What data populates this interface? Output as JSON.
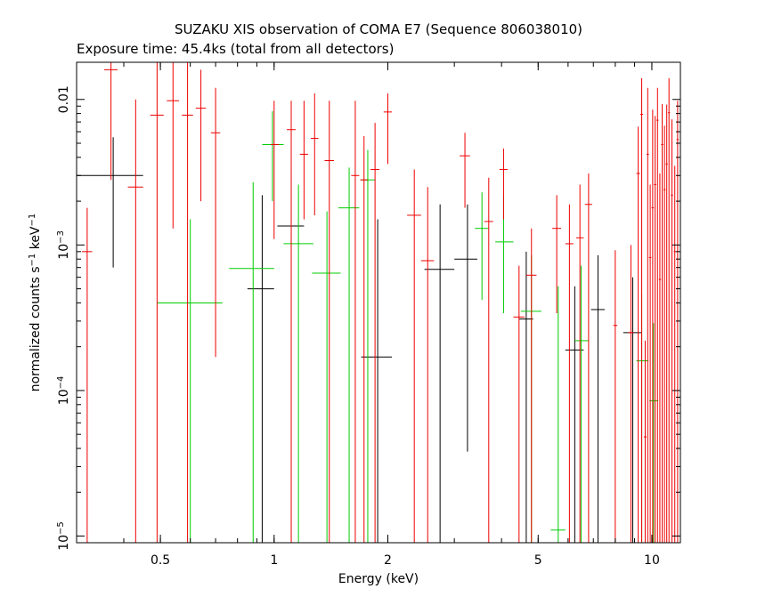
{
  "chart_data": {
    "type": "scatter",
    "title": "SUZAKU XIS observation of COMA E7 (Sequence 806038010)",
    "subtitle": "Exposure time: 45.4ks (total from all detectors)",
    "xlabel": "Energy (keV)",
    "ylabel_main": "normalized counts s",
    "ylabel_exp1": "−1",
    "ylabel_mid": " keV",
    "ylabel_exp2": "−1",
    "xscale": "log",
    "yscale": "log",
    "xlim": [
      0.3,
      11.9
    ],
    "ylim": [
      9e-06,
      0.018
    ],
    "x_ticks": [
      {
        "value": 0.5,
        "label": "0.5"
      },
      {
        "value": 1,
        "label": "1"
      },
      {
        "value": 2,
        "label": "2"
      },
      {
        "value": 5,
        "label": "5"
      },
      {
        "value": 10,
        "label": "10"
      }
    ],
    "y_ticks": [
      {
        "value": 1e-05,
        "base": "10",
        "exp": "−5"
      },
      {
        "value": 0.0001,
        "base": "10",
        "exp": "−4"
      },
      {
        "value": 0.001,
        "base": "10",
        "exp": "−3"
      },
      {
        "value": 0.01,
        "base": "0.01",
        "exp": ""
      }
    ],
    "series": [
      {
        "color": "#000000",
        "points": [
          {
            "x": 0.375,
            "xlo": 0.3,
            "xhi": 0.45,
            "y": 0.003,
            "ylo": 0.0007,
            "yhi": 0.0055
          },
          {
            "x": 0.93,
            "xlo": 0.85,
            "xhi": 1.0,
            "y": 0.0005,
            "ylo": 9e-06,
            "yhi": 0.0022
          },
          {
            "x": 1.11,
            "xlo": 1.02,
            "xhi": 1.2,
            "y": 0.00135,
            "ylo": 9e-06,
            "yhi": 0.0033
          },
          {
            "x": 1.88,
            "xlo": 1.7,
            "xhi": 2.05,
            "y": 0.00017,
            "ylo": 9e-06,
            "yhi": 0.0015
          },
          {
            "x": 2.75,
            "xlo": 2.5,
            "xhi": 3.0,
            "y": 0.00068,
            "ylo": 9e-06,
            "yhi": 0.0019
          },
          {
            "x": 3.25,
            "xlo": 3.0,
            "xhi": 3.45,
            "y": 0.0008,
            "ylo": 3.8e-05,
            "yhi": 0.0019
          },
          {
            "x": 4.65,
            "xlo": 4.45,
            "xhi": 4.85,
            "y": 0.00031,
            "ylo": 9e-06,
            "yhi": 0.0009
          },
          {
            "x": 6.25,
            "xlo": 5.9,
            "xhi": 6.6,
            "y": 0.00019,
            "ylo": 9e-06,
            "yhi": 0.00052
          },
          {
            "x": 7.2,
            "xlo": 6.9,
            "xhi": 7.5,
            "y": 0.00036,
            "ylo": 9e-06,
            "yhi": 0.00085
          },
          {
            "x": 8.9,
            "xlo": 8.4,
            "xhi": 9.4,
            "y": 0.00025,
            "ylo": 9e-06,
            "yhi": 0.0006
          }
        ]
      },
      {
        "color": "#00cc00",
        "points": [
          {
            "x": 0.6,
            "xlo": 0.49,
            "xhi": 0.73,
            "y": 0.0004,
            "ylo": 9e-06,
            "yhi": 0.0015
          },
          {
            "x": 0.88,
            "xlo": 0.76,
            "xhi": 1.0,
            "y": 0.00069,
            "ylo": 9e-06,
            "yhi": 0.0027
          },
          {
            "x": 0.99,
            "xlo": 0.93,
            "xhi": 1.06,
            "y": 0.0049,
            "ylo": 0.002,
            "yhi": 0.0083
          },
          {
            "x": 1.16,
            "xlo": 1.06,
            "xhi": 1.27,
            "y": 0.00102,
            "ylo": 9e-06,
            "yhi": 0.0026
          },
          {
            "x": 1.38,
            "xlo": 1.26,
            "xhi": 1.5,
            "y": 0.00064,
            "ylo": 9e-06,
            "yhi": 0.0017
          },
          {
            "x": 1.58,
            "xlo": 1.48,
            "xhi": 1.68,
            "y": 0.0018,
            "ylo": 9e-06,
            "yhi": 0.0034
          },
          {
            "x": 1.77,
            "xlo": 1.7,
            "xhi": 1.85,
            "y": 0.0028,
            "ylo": 9e-06,
            "yhi": 0.0045
          },
          {
            "x": 3.55,
            "xlo": 3.4,
            "xhi": 3.7,
            "y": 0.0013,
            "ylo": 0.00042,
            "yhi": 0.0023
          },
          {
            "x": 4.05,
            "xlo": 3.85,
            "xhi": 4.3,
            "y": 0.00105,
            "ylo": 0.00034,
            "yhi": 0.0022
          },
          {
            "x": 4.8,
            "xlo": 4.5,
            "xhi": 5.1,
            "y": 0.00035,
            "ylo": 9e-06,
            "yhi": 0.00085
          },
          {
            "x": 5.65,
            "xlo": 5.4,
            "xhi": 5.9,
            "y": 1.1e-05,
            "ylo": 9e-06,
            "yhi": 0.00052
          },
          {
            "x": 6.5,
            "xlo": 6.25,
            "xhi": 6.8,
            "y": 0.00022,
            "ylo": 9e-06,
            "yhi": 0.00072
          },
          {
            "x": 9.4,
            "xlo": 9.1,
            "xhi": 9.8,
            "y": 0.00016,
            "ylo": 9e-06,
            "yhi": 0.00046
          },
          {
            "x": 10.1,
            "xlo": 9.85,
            "xhi": 10.4,
            "y": 8.5e-05,
            "ylo": 9e-06,
            "yhi": 0.00029
          }
        ]
      },
      {
        "color": "#ee0000",
        "points": [
          {
            "x": 0.32,
            "xlo": 0.31,
            "xhi": 0.33,
            "y": 0.0009,
            "ylo": 9e-06,
            "yhi": 0.0018
          },
          {
            "x": 0.37,
            "xlo": 0.355,
            "xhi": 0.385,
            "y": 0.016,
            "ylo": 0.0028,
            "yhi": 0.018
          },
          {
            "x": 0.43,
            "xlo": 0.41,
            "xhi": 0.45,
            "y": 0.0025,
            "ylo": 9e-06,
            "yhi": 0.01
          },
          {
            "x": 0.49,
            "xlo": 0.47,
            "xhi": 0.51,
            "y": 0.0078,
            "ylo": 9e-06,
            "yhi": 0.018
          },
          {
            "x": 0.54,
            "xlo": 0.52,
            "xhi": 0.56,
            "y": 0.0098,
            "ylo": 0.0013,
            "yhi": 0.018
          },
          {
            "x": 0.59,
            "xlo": 0.57,
            "xhi": 0.61,
            "y": 0.0078,
            "ylo": 9e-06,
            "yhi": 0.018
          },
          {
            "x": 0.64,
            "xlo": 0.62,
            "xhi": 0.66,
            "y": 0.0087,
            "ylo": 0.002,
            "yhi": 0.016
          },
          {
            "x": 0.7,
            "xlo": 0.68,
            "xhi": 0.72,
            "y": 0.0059,
            "ylo": 0.00017,
            "yhi": 0.012
          },
          {
            "x": 1.0,
            "xlo": 0.98,
            "xhi": 1.03,
            "y": 0.0049,
            "ylo": 0.0011,
            "yhi": 0.0098
          },
          {
            "x": 1.11,
            "xlo": 1.08,
            "xhi": 1.14,
            "y": 0.0062,
            "ylo": 9e-06,
            "yhi": 0.0098
          },
          {
            "x": 1.2,
            "xlo": 1.17,
            "xhi": 1.23,
            "y": 0.0042,
            "ylo": 0.0015,
            "yhi": 0.0098
          },
          {
            "x": 1.28,
            "xlo": 1.25,
            "xhi": 1.31,
            "y": 0.0054,
            "ylo": 0.0016,
            "yhi": 0.011
          },
          {
            "x": 1.4,
            "xlo": 1.36,
            "xhi": 1.44,
            "y": 0.0038,
            "ylo": 9e-06,
            "yhi": 0.0098
          },
          {
            "x": 1.64,
            "xlo": 1.6,
            "xhi": 1.68,
            "y": 0.003,
            "ylo": 9e-06,
            "yhi": 0.0098
          },
          {
            "x": 1.73,
            "xlo": 1.69,
            "xhi": 1.77,
            "y": 0.0028,
            "ylo": 9e-06,
            "yhi": 0.0056
          },
          {
            "x": 1.85,
            "xlo": 1.8,
            "xhi": 1.9,
            "y": 0.0033,
            "ylo": 9e-06,
            "yhi": 0.0069
          },
          {
            "x": 2.0,
            "xlo": 1.95,
            "xhi": 2.05,
            "y": 0.0082,
            "ylo": 0.0036,
            "yhi": 0.011
          },
          {
            "x": 2.35,
            "xlo": 2.25,
            "xhi": 2.45,
            "y": 0.0016,
            "ylo": 9e-06,
            "yhi": 0.0033
          },
          {
            "x": 2.55,
            "xlo": 2.45,
            "xhi": 2.65,
            "y": 0.00078,
            "ylo": 9e-06,
            "yhi": 0.0025
          },
          {
            "x": 3.2,
            "xlo": 3.1,
            "xhi": 3.3,
            "y": 0.0041,
            "ylo": 0.0018,
            "yhi": 0.0059
          },
          {
            "x": 3.7,
            "xlo": 3.6,
            "xhi": 3.8,
            "y": 0.00145,
            "ylo": 9e-06,
            "yhi": 0.0029
          },
          {
            "x": 4.05,
            "xlo": 3.95,
            "xhi": 4.15,
            "y": 0.0033,
            "ylo": 0.0015,
            "yhi": 0.0046
          },
          {
            "x": 4.45,
            "xlo": 4.3,
            "xhi": 4.6,
            "y": 0.00032,
            "ylo": 9e-06,
            "yhi": 0.00072
          },
          {
            "x": 4.8,
            "xlo": 4.65,
            "xhi": 4.95,
            "y": 0.00062,
            "ylo": 9e-06,
            "yhi": 0.0013
          },
          {
            "x": 5.6,
            "xlo": 5.45,
            "xhi": 5.75,
            "y": 0.0013,
            "ylo": 0.00034,
            "yhi": 0.0022
          },
          {
            "x": 6.05,
            "xlo": 5.9,
            "xhi": 6.2,
            "y": 0.00102,
            "ylo": 9e-06,
            "yhi": 0.0019
          },
          {
            "x": 6.45,
            "xlo": 6.3,
            "xhi": 6.6,
            "y": 0.00112,
            "ylo": 9e-06,
            "yhi": 0.0026
          },
          {
            "x": 6.8,
            "xlo": 6.65,
            "xhi": 6.95,
            "y": 0.0019,
            "ylo": 9e-06,
            "yhi": 0.0031
          },
          {
            "x": 8.0,
            "xlo": 7.9,
            "xhi": 8.1,
            "y": 0.00028,
            "ylo": 9e-06,
            "yhi": 0.00092
          },
          {
            "x": 8.8,
            "xlo": 8.65,
            "xhi": 8.95,
            "y": 0.00025,
            "ylo": 9e-06,
            "yhi": 0.001
          },
          {
            "x": 9.2,
            "xlo": 9.1,
            "xhi": 9.3,
            "y": 0.0031,
            "ylo": 9e-06,
            "yhi": 0.0065
          },
          {
            "x": 9.4,
            "xlo": 9.32,
            "xhi": 9.48,
            "y": 0.0079,
            "ylo": 9e-06,
            "yhi": 0.014
          },
          {
            "x": 9.6,
            "xlo": 9.52,
            "xhi": 9.68,
            "y": 4.8e-05,
            "ylo": 9e-06,
            "yhi": 0.00022
          },
          {
            "x": 9.75,
            "xlo": 9.68,
            "xhi": 9.82,
            "y": 0.0042,
            "ylo": 9e-06,
            "yhi": 0.012
          },
          {
            "x": 9.9,
            "xlo": 9.83,
            "xhi": 9.97,
            "y": 0.00082,
            "ylo": 9e-06,
            "yhi": 0.0026
          },
          {
            "x": 10.05,
            "xlo": 9.98,
            "xhi": 10.12,
            "y": 0.0018,
            "ylo": 9e-06,
            "yhi": 0.0085
          },
          {
            "x": 10.2,
            "xlo": 10.13,
            "xhi": 10.27,
            "y": 0.0026,
            "ylo": 9e-06,
            "yhi": 0.0077
          },
          {
            "x": 10.35,
            "xlo": 10.28,
            "xhi": 10.42,
            "y": 0.0072,
            "ylo": 9e-06,
            "yhi": 0.012
          },
          {
            "x": 10.5,
            "xlo": 10.43,
            "xhi": 10.57,
            "y": 0.00058,
            "ylo": 9e-06,
            "yhi": 0.0031
          },
          {
            "x": 10.65,
            "xlo": 10.58,
            "xhi": 10.72,
            "y": 0.0049,
            "ylo": 9e-06,
            "yhi": 0.0093
          },
          {
            "x": 10.8,
            "xlo": 10.73,
            "xhi": 10.87,
            "y": 0.0024,
            "ylo": 9e-06,
            "yhi": 0.0066
          },
          {
            "x": 10.95,
            "xlo": 10.88,
            "xhi": 11.02,
            "y": 0.0036,
            "ylo": 9e-06,
            "yhi": 0.0092
          },
          {
            "x": 11.1,
            "xlo": 11.03,
            "xhi": 11.17,
            "y": 0.0081,
            "ylo": 9e-06,
            "yhi": 0.014
          },
          {
            "x": 11.3,
            "xlo": 11.22,
            "xhi": 11.38,
            "y": 0.0022,
            "ylo": 9e-06,
            "yhi": 0.0073
          },
          {
            "x": 11.5,
            "xlo": 11.42,
            "xhi": 11.58,
            "y": 0.0009,
            "ylo": 9e-06,
            "yhi": 0.0035
          },
          {
            "x": 11.7,
            "xlo": 11.62,
            "xhi": 11.78,
            "y": 0.0053,
            "ylo": 9e-06,
            "yhi": 0.0098
          }
        ]
      }
    ]
  }
}
